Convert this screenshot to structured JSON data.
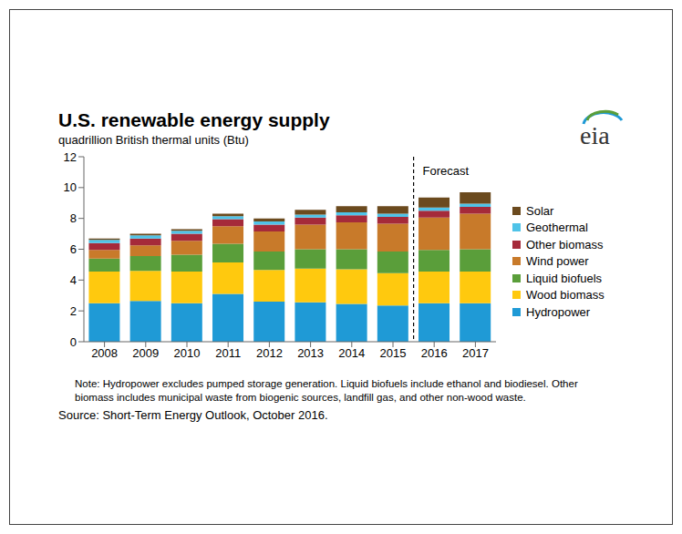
{
  "chart_data": {
    "type": "bar",
    "stacked": true,
    "title": "U.S. renewable energy supply",
    "subtitle": "quadrillion British thermal units (Btu)",
    "logo": "eia",
    "note": "Note: Hydropower excludes pumped storage generation.  Liquid biofuels include ethanol and biodiesel.  Other biomass includes municipal waste from biogenic sources, landfill gas, and other non-wood waste.",
    "source": "Source: Short-Term Energy Outlook, October 2016.",
    "annotations": [
      {
        "text": "Forecast",
        "from": "2016"
      }
    ],
    "categories": [
      "2008",
      "2009",
      "2010",
      "2011",
      "2012",
      "2013",
      "2014",
      "2015",
      "2016",
      "2017"
    ],
    "series": [
      {
        "name": "Hydropower",
        "color": "#1f9ad6",
        "values": [
          2.5,
          2.65,
          2.5,
          3.1,
          2.6,
          2.55,
          2.45,
          2.35,
          2.5,
          2.5
        ]
      },
      {
        "name": "Wood biomass",
        "color": "#ffc90e",
        "values": [
          2.05,
          1.95,
          2.05,
          2.05,
          2.05,
          2.2,
          2.25,
          2.1,
          2.05,
          2.05
        ]
      },
      {
        "name": "Liquid biofuels",
        "color": "#5a9e3a",
        "values": [
          0.85,
          0.95,
          1.1,
          1.2,
          1.2,
          1.25,
          1.3,
          1.4,
          1.4,
          1.45
        ]
      },
      {
        "name": "Wind power",
        "color": "#c87a2a",
        "values": [
          0.55,
          0.7,
          0.9,
          1.15,
          1.3,
          1.6,
          1.75,
          1.8,
          2.1,
          2.3
        ]
      },
      {
        "name": "Other biomass",
        "color": "#a52a3a",
        "values": [
          0.45,
          0.45,
          0.45,
          0.45,
          0.45,
          0.45,
          0.45,
          0.45,
          0.45,
          0.45
        ]
      },
      {
        "name": "Geothermal",
        "color": "#4fc3e8",
        "values": [
          0.2,
          0.2,
          0.2,
          0.2,
          0.2,
          0.2,
          0.2,
          0.2,
          0.2,
          0.2
        ]
      },
      {
        "name": "Solar",
        "color": "#6b4a1e",
        "values": [
          0.1,
          0.1,
          0.1,
          0.15,
          0.2,
          0.3,
          0.4,
          0.5,
          0.65,
          0.75
        ]
      }
    ],
    "ylim": [
      0,
      12
    ],
    "yticks": [
      0,
      2,
      4,
      6,
      8,
      10,
      12
    ],
    "grid": false,
    "legend": "right"
  }
}
